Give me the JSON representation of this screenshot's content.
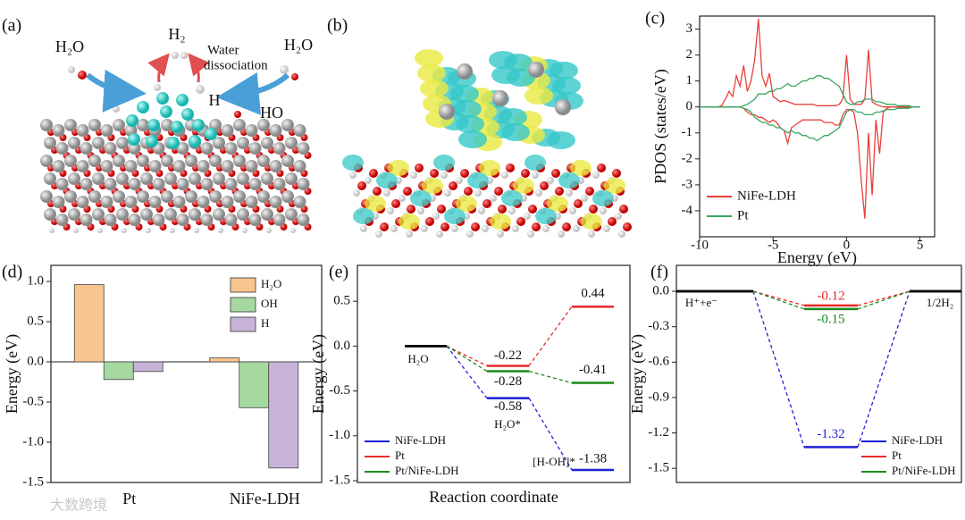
{
  "panel_labels": [
    "(a)",
    "(b)",
    "(c)",
    "(d)",
    "(e)",
    "(f)"
  ],
  "panel_a": {
    "water_left": "H₂O",
    "hydrogen": "H₂",
    "process": [
      "Water",
      "dissociation"
    ],
    "water_right": "H₂O",
    "h_atom": "H",
    "hydroxyl": "HO"
  },
  "watermark": "大数跨境",
  "chart_data": [
    {
      "type": "line",
      "xlabel": "Energy (eV)",
      "ylabel": "PDOS (states/eV)",
      "xlim": [
        -10,
        6
      ],
      "ylim": [
        -5,
        3.5
      ],
      "xticks": [
        -10,
        -5,
        0,
        5
      ],
      "yticks": [
        -4,
        -3,
        -2,
        -1,
        0,
        1,
        2,
        3
      ],
      "legend": "lower left",
      "x": [
        -10,
        -9.75,
        -9.5,
        -9.25,
        -9,
        -8.75,
        -8.5,
        -8.25,
        -8,
        -7.75,
        -7.5,
        -7.25,
        -7,
        -6.75,
        -6.5,
        -6.25,
        -6,
        -5.75,
        -5.5,
        -5.25,
        -5,
        -4.75,
        -4.5,
        -4.25,
        -4,
        -3.75,
        -3.5,
        -3.25,
        -3,
        -2.75,
        -2.5,
        -2.25,
        -2,
        -1.75,
        -1.5,
        -1.25,
        -1,
        -0.75,
        -0.5,
        -0.25,
        0,
        0.25,
        0.5,
        0.75,
        1,
        1.25,
        1.5,
        1.75,
        2,
        2.25,
        2.5,
        2.75,
        3,
        3.25,
        3.5,
        3.75,
        4,
        4.25,
        4.5,
        4.75,
        5
      ],
      "series": [
        {
          "name": "NiFe-LDH",
          "color": "#e8403a",
          "values": [
            0,
            0,
            0,
            0,
            0,
            0,
            0.05,
            0.3,
            0.6,
            0.4,
            1.2,
            0.8,
            1.6,
            0.6,
            1.0,
            1.8,
            3.4,
            1.2,
            0.8,
            1.3,
            0.4,
            0.3,
            0.2,
            0.25,
            0.2,
            0.15,
            0.1,
            0.1,
            0.1,
            0.1,
            0.1,
            0.1,
            0.05,
            0.05,
            0.05,
            0.05,
            0.05,
            0.05,
            0.1,
            0.3,
            2.0,
            0.3,
            0.1,
            0.1,
            0.1,
            0.3,
            2.2,
            0.2,
            0.1,
            0.05,
            0,
            0,
            0,
            0,
            0,
            0,
            0,
            0,
            0,
            0,
            0
          ],
          "values_down": [
            0,
            0,
            0,
            0,
            0,
            0,
            0,
            0,
            0,
            0,
            0,
            0,
            -0.05,
            -0.2,
            -0.3,
            -0.3,
            -0.4,
            -0.4,
            -0.5,
            -0.6,
            -0.5,
            -0.6,
            -0.8,
            -0.9,
            -1.4,
            -0.8,
            -0.7,
            -0.6,
            -0.5,
            -0.5,
            -0.5,
            -0.5,
            -0.5,
            -0.5,
            -0.6,
            -0.6,
            -0.6,
            -0.7,
            -0.7,
            -0.3,
            -0.1,
            -0.1,
            -0.2,
            -1.0,
            -2.8,
            -4.3,
            -1.0,
            -3.4,
            -0.5,
            -1.8,
            -0.2,
            -0.05,
            0,
            0,
            0,
            0,
            0,
            0,
            0,
            0,
            0
          ]
        },
        {
          "name": "Pt",
          "color": "#3aa561",
          "values": [
            0,
            0,
            0,
            0,
            0,
            0,
            0,
            0,
            0,
            0,
            0,
            0,
            0.05,
            0.1,
            0.2,
            0.3,
            0.5,
            0.5,
            0.5,
            0.6,
            0.6,
            0.7,
            0.7,
            0.8,
            0.9,
            0.8,
            0.8,
            0.9,
            1.0,
            1.0,
            1.1,
            1.1,
            1.2,
            1.2,
            1.1,
            1.1,
            1.0,
            0.9,
            0.8,
            0.5,
            0.2,
            0.1,
            0.1,
            0.2,
            0.2,
            0.3,
            0.3,
            0.3,
            0.2,
            0.2,
            0.15,
            0.1,
            0.1,
            0.1,
            0.05,
            0.05,
            0.05,
            0.05,
            0,
            0,
            0
          ],
          "values_down": [
            0,
            0,
            0,
            0,
            0,
            0,
            0,
            0,
            0,
            0,
            0,
            0,
            -0.05,
            -0.1,
            -0.2,
            -0.4,
            -0.5,
            -0.6,
            -0.6,
            -0.7,
            -0.7,
            -0.8,
            -0.8,
            -0.9,
            -1.0,
            -0.9,
            -1.0,
            -1.0,
            -1.1,
            -1.1,
            -1.2,
            -1.2,
            -1.3,
            -1.2,
            -1.1,
            -1.1,
            -1.0,
            -0.9,
            -0.8,
            -0.5,
            -0.2,
            -0.1,
            -0.1,
            -0.2,
            -0.2,
            -0.3,
            -0.3,
            -0.3,
            -0.2,
            -0.2,
            -0.15,
            -0.1,
            -0.1,
            -0.1,
            -0.05,
            -0.05,
            -0.05,
            -0.05,
            0,
            0,
            0
          ]
        }
      ]
    },
    {
      "type": "bar",
      "ylabel": "Energy (eV)",
      "ylim": [
        -1.5,
        1.2
      ],
      "yticks": [
        -1.5,
        {
          "value": -1,
          "label": "-1.0"
        },
        -0.5,
        {
          "value": 0,
          "label": "0.0"
        },
        0.5,
        {
          "value": 1,
          "label": "1.0"
        }
      ],
      "legend": "upper right",
      "categories": [
        "Pt",
        "NiFe-LDH"
      ],
      "series": [
        {
          "name": "H₂O",
          "color": "#f9c58e",
          "values": [
            0.96,
            0.05
          ]
        },
        {
          "name": "OH",
          "color": "#a6d9a0",
          "values": [
            -0.22,
            -0.57
          ]
        },
        {
          "name": "H",
          "color": "#c8b3d8",
          "values": [
            -0.12,
            -1.32
          ]
        }
      ]
    },
    {
      "type": "energy",
      "xlabel": "Reaction coordinate",
      "ylabel": "Energy (eV)",
      "ylim": [
        -1.52,
        0.9
      ],
      "yticks": [
        -1.5,
        {
          "value": -1,
          "label": "-1.0"
        },
        -0.5,
        {
          "value": 0,
          "label": "0.0"
        },
        0.5
      ],
      "legend": "lower left",
      "common_color": "#000000",
      "categories": [
        "H₂O",
        "H₂O*",
        "[H-OH]*"
      ],
      "series": [
        {
          "name": "NiFe-LDH",
          "color": "#1f1fd6",
          "values": [
            0,
            -0.58,
            -1.38
          ]
        },
        {
          "name": "Pt",
          "color": "#e82a2a",
          "values": [
            0,
            -0.22,
            0.44
          ]
        },
        {
          "name": "Pt/NiFe-LDH",
          "color": "#1a8a1a",
          "values": [
            0,
            -0.28,
            -0.41
          ]
        }
      ]
    },
    {
      "type": "energy",
      "ylabel": "Energy (eV)",
      "ylim": [
        -1.62,
        0.22
      ],
      "yticks": [
        {
          "value": 0,
          "label": "0.0"
        },
        -0.3,
        -0.6,
        -0.9,
        -1.2,
        -1.5
      ],
      "legend": "lower right",
      "common_color": "#000000",
      "categories": [
        "H⁺+e⁻",
        null,
        "1/2H₂"
      ],
      "series": [
        {
          "name": "NiFe-LDH",
          "color": "#1f1fd6",
          "values": [
            0,
            -1.32,
            0
          ]
        },
        {
          "name": "Pt",
          "color": "#e82a2a",
          "values": [
            0,
            -0.12,
            0
          ]
        },
        {
          "name": "Pt/NiFe-LDH",
          "color": "#1a8a1a",
          "values": [
            0,
            -0.15,
            0
          ]
        }
      ]
    }
  ]
}
